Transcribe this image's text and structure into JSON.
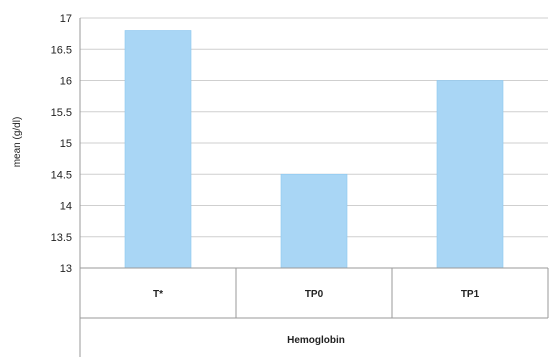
{
  "chart_data": {
    "type": "bar",
    "categories": [
      "T*",
      "TP0",
      "TP1"
    ],
    "values": [
      16.8,
      14.5,
      16.0
    ],
    "group_label": "Hemoglobin",
    "ylabel": "mean (g/dl)",
    "ylim": [
      13,
      17
    ],
    "yticks": [
      "13",
      "13.5",
      "14",
      "14.5",
      "15",
      "15.5",
      "16",
      "16.5",
      "17"
    ],
    "grid": true,
    "bar_color": "#a9d6f5",
    "bar_stroke": "#8cc6ee",
    "grid_color": "#cfcfcf",
    "axis_color": "#9a9a9a"
  }
}
